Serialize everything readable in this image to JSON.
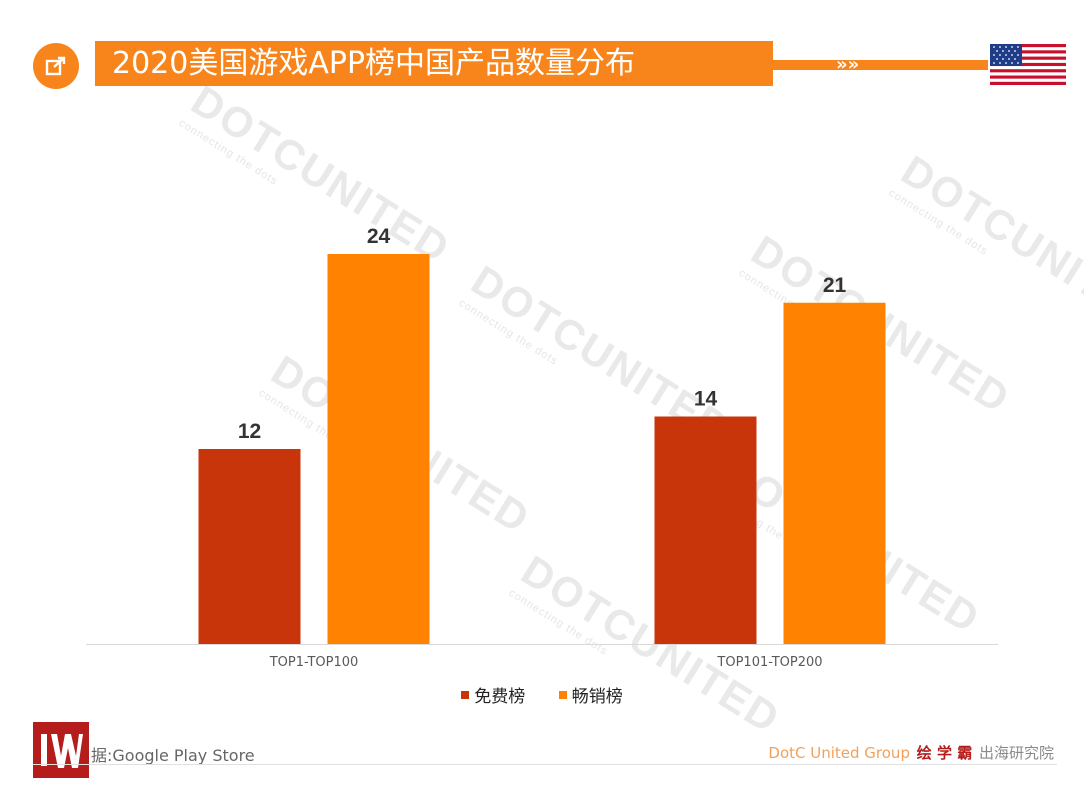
{
  "header": {
    "title": "2020美国游戏APP榜中国产品数量分布",
    "chevron": "»»",
    "flag_icon": "us-flag-icon",
    "share_icon": "share-icon"
  },
  "colors": {
    "accent": "#f7851c",
    "free": "#c9350b",
    "grossing": "#ff8200",
    "brand_red": "#b51d1d"
  },
  "chart_data": {
    "type": "bar",
    "categories": [
      "TOP1-TOP100",
      "TOP101-TOP200"
    ],
    "series": [
      {
        "name": "免费榜",
        "values": [
          12,
          14
        ]
      },
      {
        "name": "畅销榜",
        "values": [
          24,
          21
        ]
      }
    ],
    "ylim": [
      0,
      24
    ],
    "grid": false,
    "legend_position": "bottom"
  },
  "watermark": {
    "text": "DOTCUNITED",
    "tagline": "connecting the dots"
  },
  "footer": {
    "source": "据:Google  Play Store",
    "brand": "DotC United Group",
    "mark": "绘 学 霸",
    "research": "出海研究院"
  }
}
